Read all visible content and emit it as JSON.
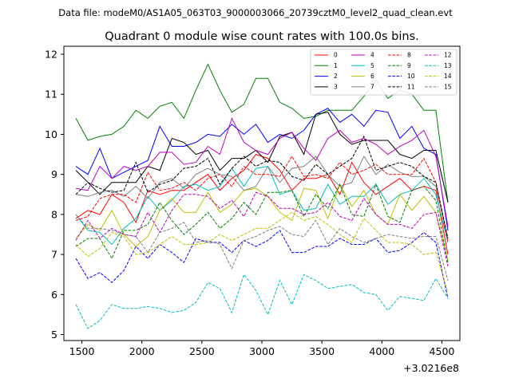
{
  "header": {
    "data_file": "Data file: modeM0/AS1A05_063T03_9000003066_20739cztM0_level2_quad_clean.evt"
  },
  "chart_data": {
    "type": "line",
    "title": "Quadrant 0 module wise count rates with 100.0s bins.",
    "xlabel": "",
    "ylabel": "",
    "x_offset_label": "+3.0216e8",
    "xlim": [
      1350,
      4650
    ],
    "ylim": [
      4.85,
      12.2
    ],
    "xticks": [
      1500,
      2000,
      2500,
      3000,
      3500,
      4000,
      4500
    ],
    "yticks": [
      5,
      6,
      7,
      8,
      9,
      10,
      11,
      12
    ],
    "legend_position": "top-right",
    "grid": false,
    "x": [
      1450,
      1550,
      1650,
      1750,
      1850,
      1950,
      2050,
      2150,
      2250,
      2350,
      2450,
      2550,
      2650,
      2750,
      2850,
      2950,
      3050,
      3150,
      3250,
      3350,
      3450,
      3550,
      3650,
      3750,
      3850,
      3950,
      4050,
      4150,
      4250,
      4350,
      4450,
      4550
    ],
    "series": [
      {
        "name": "0",
        "color": "#ff0000",
        "dash": "solid",
        "values": [
          7.9,
          8.1,
          8.0,
          8.5,
          8.3,
          7.8,
          8.6,
          8.5,
          8.6,
          8.6,
          8.8,
          9.0,
          8.6,
          8.9,
          9.1,
          9.5,
          9.4,
          9.1,
          8.6,
          8.9,
          8.9,
          9.0,
          8.5,
          9.3,
          8.8,
          8.5,
          8.7,
          8.9,
          8.6,
          8.7,
          8.6,
          7.0
        ]
      },
      {
        "name": "1",
        "color": "#008000",
        "dash": "solid",
        "values": [
          10.4,
          9.85,
          9.95,
          10.0,
          10.2,
          10.6,
          10.4,
          10.7,
          10.8,
          10.4,
          11.1,
          11.75,
          11.1,
          10.55,
          10.75,
          11.4,
          11.4,
          10.8,
          10.65,
          10.4,
          10.45,
          10.6,
          10.6,
          10.6,
          10.95,
          11.35,
          10.9,
          11.1,
          11.0,
          10.6,
          10.6,
          8.3
        ]
      },
      {
        "name": "2",
        "color": "#0000ff",
        "dash": "solid",
        "values": [
          9.2,
          9.0,
          9.65,
          8.9,
          9.05,
          9.2,
          9.35,
          10.2,
          9.7,
          9.7,
          9.8,
          10.0,
          9.95,
          10.25,
          10.0,
          10.25,
          9.8,
          10.0,
          9.9,
          10.1,
          10.5,
          10.65,
          10.3,
          10.5,
          10.2,
          10.6,
          10.55,
          9.9,
          10.2,
          9.65,
          9.5,
          7.6
        ]
      },
      {
        "name": "3",
        "color": "#000000",
        "dash": "solid",
        "values": [
          9.1,
          8.8,
          8.5,
          8.8,
          8.8,
          8.8,
          9.2,
          9.1,
          9.9,
          9.8,
          9.5,
          9.6,
          9.1,
          9.4,
          9.4,
          9.6,
          9.3,
          9.95,
          10.05,
          9.5,
          10.5,
          10.55,
          10.0,
          9.75,
          9.85,
          9.85,
          9.85,
          9.5,
          9.4,
          9.6,
          9.6,
          8.3
        ]
      },
      {
        "name": "4",
        "color": "#bf00bf",
        "dash": "solid",
        "values": [
          8.65,
          8.6,
          9.2,
          8.9,
          9.2,
          9.1,
          9.2,
          9.55,
          9.55,
          9.25,
          9.3,
          9.7,
          9.5,
          10.4,
          9.8,
          9.6,
          9.5,
          9.9,
          10.05,
          9.65,
          9.35,
          9.9,
          10.1,
          9.8,
          9.9,
          9.75,
          9.5,
          9.7,
          9.85,
          10.1,
          9.45,
          7.7
        ]
      },
      {
        "name": "5",
        "color": "#00bfbf",
        "dash": "solid",
        "values": [
          8.0,
          7.6,
          7.55,
          7.25,
          7.65,
          7.9,
          8.45,
          8.1,
          8.35,
          8.7,
          8.75,
          8.6,
          8.7,
          9.15,
          8.7,
          9.15,
          9.2,
          8.5,
          8.6,
          8.1,
          8.15,
          8.75,
          8.25,
          8.45,
          8.45,
          8.75,
          8.25,
          8.5,
          8.6,
          8.9,
          8.5,
          7.3
        ]
      },
      {
        "name": "6",
        "color": "#bfbf00",
        "dash": "solid",
        "values": [
          7.4,
          7.75,
          7.6,
          8.1,
          7.5,
          7.2,
          7.45,
          8.1,
          8.4,
          8.05,
          8.05,
          8.55,
          8.05,
          8.25,
          8.6,
          8.65,
          8.45,
          8.05,
          7.85,
          8.65,
          8.6,
          7.9,
          8.75,
          8.2,
          8.6,
          8.0,
          7.75,
          8.5,
          8.1,
          8.45,
          8.05,
          6.85
        ]
      },
      {
        "name": "7",
        "color": "#808080",
        "dash": "solid",
        "values": [
          8.5,
          8.45,
          8.55,
          8.6,
          8.45,
          8.7,
          8.4,
          8.8,
          8.9,
          8.65,
          9.0,
          9.15,
          9.0,
          8.95,
          8.6,
          8.7,
          9.2,
          8.8,
          9.15,
          9.2,
          9.45,
          9.0,
          8.7,
          8.8,
          9.45,
          9.0,
          9.25,
          9.05,
          8.95,
          8.95,
          8.7,
          7.4
        ]
      },
      {
        "name": "8",
        "color": "#ff0000",
        "dash": "dashed",
        "values": [
          7.85,
          7.95,
          8.4,
          8.5,
          8.5,
          8.3,
          9.05,
          8.6,
          8.65,
          8.8,
          8.6,
          8.9,
          9.0,
          8.7,
          9.2,
          9.0,
          9.0,
          8.95,
          9.45,
          8.95,
          9.0,
          8.9,
          9.3,
          9.0,
          9.1,
          9.25,
          9.0,
          9.0,
          9.0,
          9.4,
          8.8,
          7.3
        ]
      },
      {
        "name": "9",
        "color": "#008000",
        "dash": "dashed",
        "values": [
          7.2,
          7.4,
          7.4,
          6.9,
          7.6,
          7.6,
          7.75,
          8.3,
          7.85,
          7.5,
          7.75,
          8.05,
          7.65,
          7.9,
          8.3,
          8.0,
          8.55,
          8.55,
          8.6,
          7.95,
          8.5,
          8.15,
          8.75,
          8.0,
          7.95,
          8.75,
          7.95,
          7.8,
          8.6,
          8.7,
          8.35,
          6.8
        ]
      },
      {
        "name": "10",
        "color": "#0000ff",
        "dash": "dashed",
        "values": [
          6.9,
          6.4,
          6.55,
          6.3,
          6.6,
          7.2,
          6.9,
          7.25,
          7.05,
          6.8,
          7.4,
          7.3,
          7.3,
          7.05,
          7.35,
          7.2,
          7.35,
          7.6,
          7.05,
          7.05,
          7.2,
          7.2,
          7.4,
          7.25,
          7.25,
          7.4,
          7.05,
          7.1,
          7.3,
          7.55,
          7.3,
          5.9
        ]
      },
      {
        "name": "11",
        "color": "#000000",
        "dash": "dashed",
        "values": [
          8.5,
          8.8,
          8.65,
          8.55,
          8.6,
          9.3,
          8.55,
          8.75,
          8.85,
          9.15,
          9.2,
          9.4,
          8.75,
          9.15,
          9.45,
          9.2,
          9.35,
          9.3,
          8.95,
          8.85,
          9.25,
          9.0,
          9.2,
          9.4,
          9.95,
          9.1,
          9.2,
          9.3,
          9.2,
          8.95,
          8.8,
          7.4
        ]
      },
      {
        "name": "12",
        "color": "#bf00bf",
        "dash": "dashed",
        "values": [
          7.35,
          7.85,
          7.4,
          7.65,
          7.5,
          7.45,
          8.05,
          7.55,
          8.1,
          8.5,
          8.5,
          8.45,
          8.15,
          8.35,
          7.95,
          8.55,
          8.45,
          8.15,
          8.15,
          8.0,
          8.05,
          8.3,
          7.95,
          7.85,
          8.4,
          8.0,
          7.75,
          7.75,
          7.65,
          8.0,
          8.05,
          6.7
        ]
      },
      {
        "name": "13",
        "color": "#00bfbf",
        "dash": "dashed",
        "values": [
          5.75,
          5.15,
          5.35,
          5.75,
          5.65,
          5.65,
          5.7,
          5.65,
          5.55,
          5.6,
          5.8,
          6.3,
          6.15,
          5.55,
          6.5,
          6.1,
          5.5,
          6.35,
          5.75,
          6.5,
          6.35,
          6.15,
          6.2,
          6.25,
          6.05,
          6.0,
          5.6,
          5.95,
          5.9,
          5.85,
          6.4,
          5.9
        ]
      },
      {
        "name": "14",
        "color": "#bfbf00",
        "dash": "dashed",
        "values": [
          7.25,
          6.95,
          7.15,
          7.55,
          7.45,
          7.0,
          7.05,
          7.25,
          7.45,
          7.25,
          7.25,
          7.3,
          7.5,
          7.35,
          7.5,
          7.65,
          7.65,
          7.85,
          8.05,
          7.85,
          7.95,
          7.75,
          7.5,
          7.3,
          7.9,
          7.6,
          7.3,
          7.3,
          7.25,
          7.0,
          7.05,
          6.05
        ]
      },
      {
        "name": "15",
        "color": "#808080",
        "dash": "dashed",
        "values": [
          8.0,
          7.65,
          7.65,
          7.6,
          7.5,
          7.45,
          7.05,
          7.55,
          7.65,
          7.8,
          7.3,
          7.35,
          7.25,
          6.65,
          7.35,
          7.45,
          7.6,
          7.7,
          7.5,
          7.45,
          7.85,
          7.25,
          7.65,
          7.45,
          7.3,
          7.4,
          7.5,
          7.45,
          7.4,
          7.45,
          7.45,
          6.35
        ]
      }
    ]
  }
}
